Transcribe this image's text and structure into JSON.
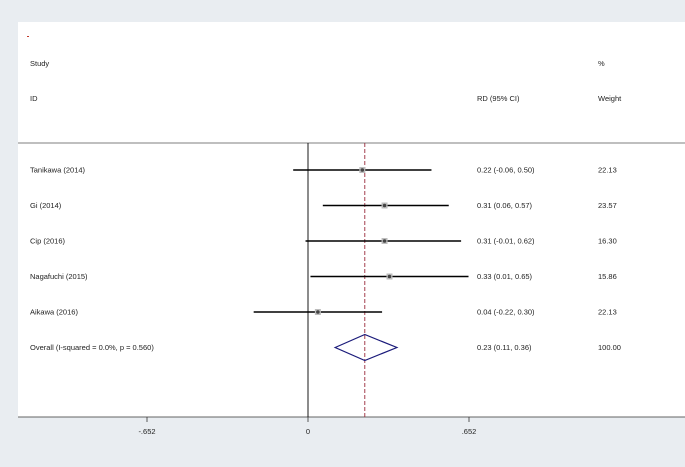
{
  "header": {
    "col_study": "Study",
    "col_id": "ID",
    "col_rd": "RD (95% CI)",
    "col_pct": "%",
    "col_weight": "Weight"
  },
  "colors": {
    "background": "#e9edf1",
    "plot_area": "#ffffff",
    "ci_line": "#000000",
    "point": "#444444",
    "reference_line": "#9a2a3a",
    "diamond": "#1a1a7a",
    "marker": "#c0392b"
  },
  "chart_data": {
    "type": "forest",
    "measure": "RD",
    "xticks": [
      -0.652,
      0,
      0.652
    ],
    "xtick_labels": [
      "-.652",
      "0",
      ".652"
    ],
    "xlim": [
      -1.1,
      1.1
    ],
    "null_value": 0,
    "pooled_estimate": 0.23,
    "studies": [
      {
        "name": "Tanikawa  (2014)",
        "rd": 0.22,
        "lower": -0.06,
        "upper": 0.5,
        "ci_text": "0.22 (-0.06, 0.50)",
        "weight_text": "22.13"
      },
      {
        "name": "Gi (2014)",
        "rd": 0.31,
        "lower": 0.06,
        "upper": 0.57,
        "ci_text": "0.31 (0.06, 0.57)",
        "weight_text": "23.57"
      },
      {
        "name": "Cip  (2016)",
        "rd": 0.31,
        "lower": -0.01,
        "upper": 0.62,
        "ci_text": "0.31 (-0.01, 0.62)",
        "weight_text": "16.30"
      },
      {
        "name": "Nagafuchi  (2015)",
        "rd": 0.33,
        "lower": 0.01,
        "upper": 0.65,
        "ci_text": "0.33 (0.01, 0.65)",
        "weight_text": "15.86"
      },
      {
        "name": "Aikawa (2016)",
        "rd": 0.04,
        "lower": -0.22,
        "upper": 0.3,
        "ci_text": "0.04 (-0.22, 0.30)",
        "weight_text": "22.13"
      }
    ],
    "overall": {
      "name": "Overall  (I-squared = 0.0%, p = 0.560)",
      "rd": 0.23,
      "lower": 0.11,
      "upper": 0.36,
      "ci_text": "0.23 (0.11, 0.36)",
      "weight_text": "100.00"
    }
  }
}
